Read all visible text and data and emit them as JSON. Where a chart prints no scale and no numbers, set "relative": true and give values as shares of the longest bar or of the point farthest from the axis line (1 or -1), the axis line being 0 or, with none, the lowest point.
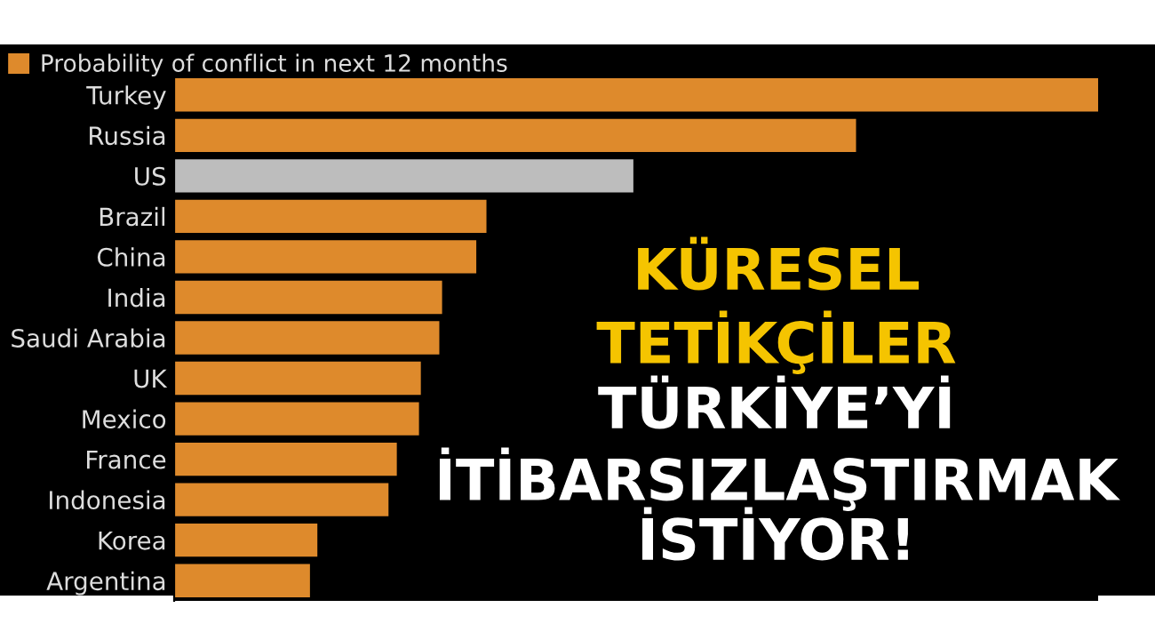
{
  "chart_data": {
    "type": "bar",
    "orientation": "horizontal",
    "relative": true,
    "categories": [
      "Turkey",
      "Russia",
      "US",
      "Brazil",
      "China",
      "India",
      "Saudi Arabia",
      "UK",
      "Mexico",
      "France",
      "Indonesia",
      "Korea",
      "Argentina"
    ],
    "series": [
      {
        "name": "Probability of conflict in next 12 months",
        "color": "#de8a2c",
        "colors": [
          "#de8a2c",
          "#de8a2c",
          "#bdbdbd",
          "#de8a2c",
          "#de8a2c",
          "#de8a2c",
          "#de8a2c",
          "#de8a2c",
          "#de8a2c",
          "#de8a2c",
          "#de8a2c",
          "#de8a2c",
          "#de8a2c"
        ],
        "values": [
          1,
          0.738,
          0.497,
          0.338,
          0.327,
          0.29,
          0.287,
          0.267,
          0.265,
          0.241,
          0.232,
          0.155,
          0.147
        ]
      }
    ],
    "legend": "top left",
    "grid": false,
    "annotations": [
      "KÜRESEL",
      "TETİKÇİLER",
      "TÜRKİYE’Yİ",
      "İTİBARSIZLAŞTIRMAK",
      "İSTİYOR!"
    ]
  }
}
